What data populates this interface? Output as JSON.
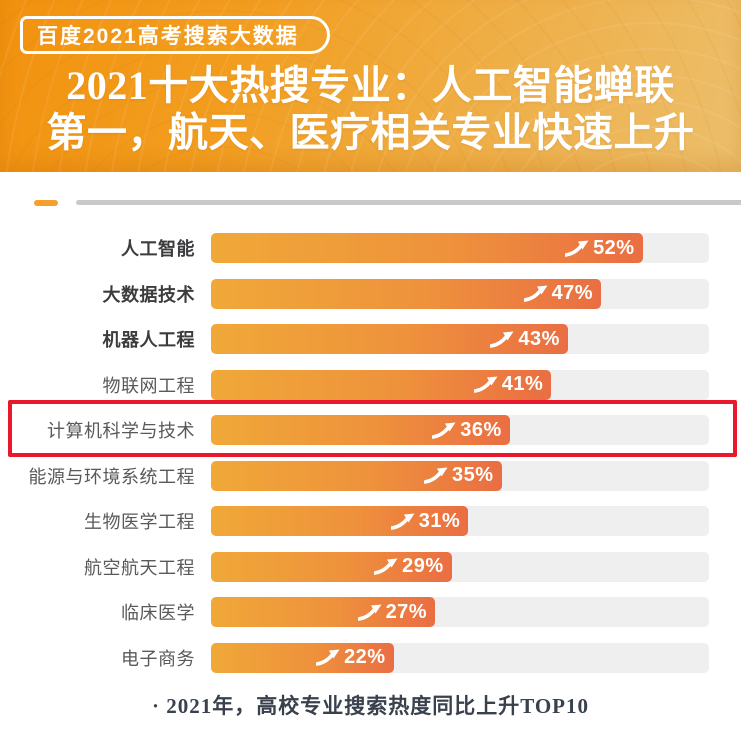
{
  "badge": {
    "label": "百度2021高考搜索大数据"
  },
  "title": {
    "line1": "2021十大热搜专业：人工智能蝉联",
    "line2": "第一，航天、医疗相关专业快速上升"
  },
  "footer": {
    "note": "· 2021年，高校专业搜索热度同比上升TOP10"
  },
  "chart_data": {
    "type": "bar",
    "orientation": "horizontal",
    "title": "2021十大热搜专业：人工智能蝉联第一，航天、医疗相关专业快速上升",
    "note": "2021年，高校专业搜索热度同比上升TOP10",
    "categories": [
      "人工智能",
      "大数据技术",
      "机器人工程",
      "物联网工程",
      "计算机科学与技术",
      "能源与环境系统工程",
      "生物医学工程",
      "航空航天工程",
      "临床医学",
      "电子商务"
    ],
    "values": [
      52,
      47,
      43,
      41,
      36,
      35,
      31,
      29,
      27,
      22
    ],
    "value_suffix": "%",
    "xlim": [
      0,
      60
    ],
    "grid": false,
    "legend": false,
    "bold_categories": [
      "人工智能",
      "大数据技术",
      "机器人工程"
    ],
    "highlighted_category": "计算机科学与技术",
    "highlight_index": 4
  },
  "icons": {
    "trend_arrow": "up-right-swoosh-arrow"
  },
  "colors": {
    "header_gradient_start": "#f2920f",
    "header_gradient_end": "#ecbf6c",
    "bar_gradient_start": "#f0a838",
    "bar_gradient_end": "#ea6e43",
    "track": "#efefef",
    "highlight_border": "#e9182b",
    "divider_dash": "#f5a02d",
    "divider_line": "#c9c9c9",
    "label_bold": "#3c3c3e",
    "label_normal": "#58595b",
    "value_text": "#ffffff",
    "footer_text": "#39414d"
  }
}
